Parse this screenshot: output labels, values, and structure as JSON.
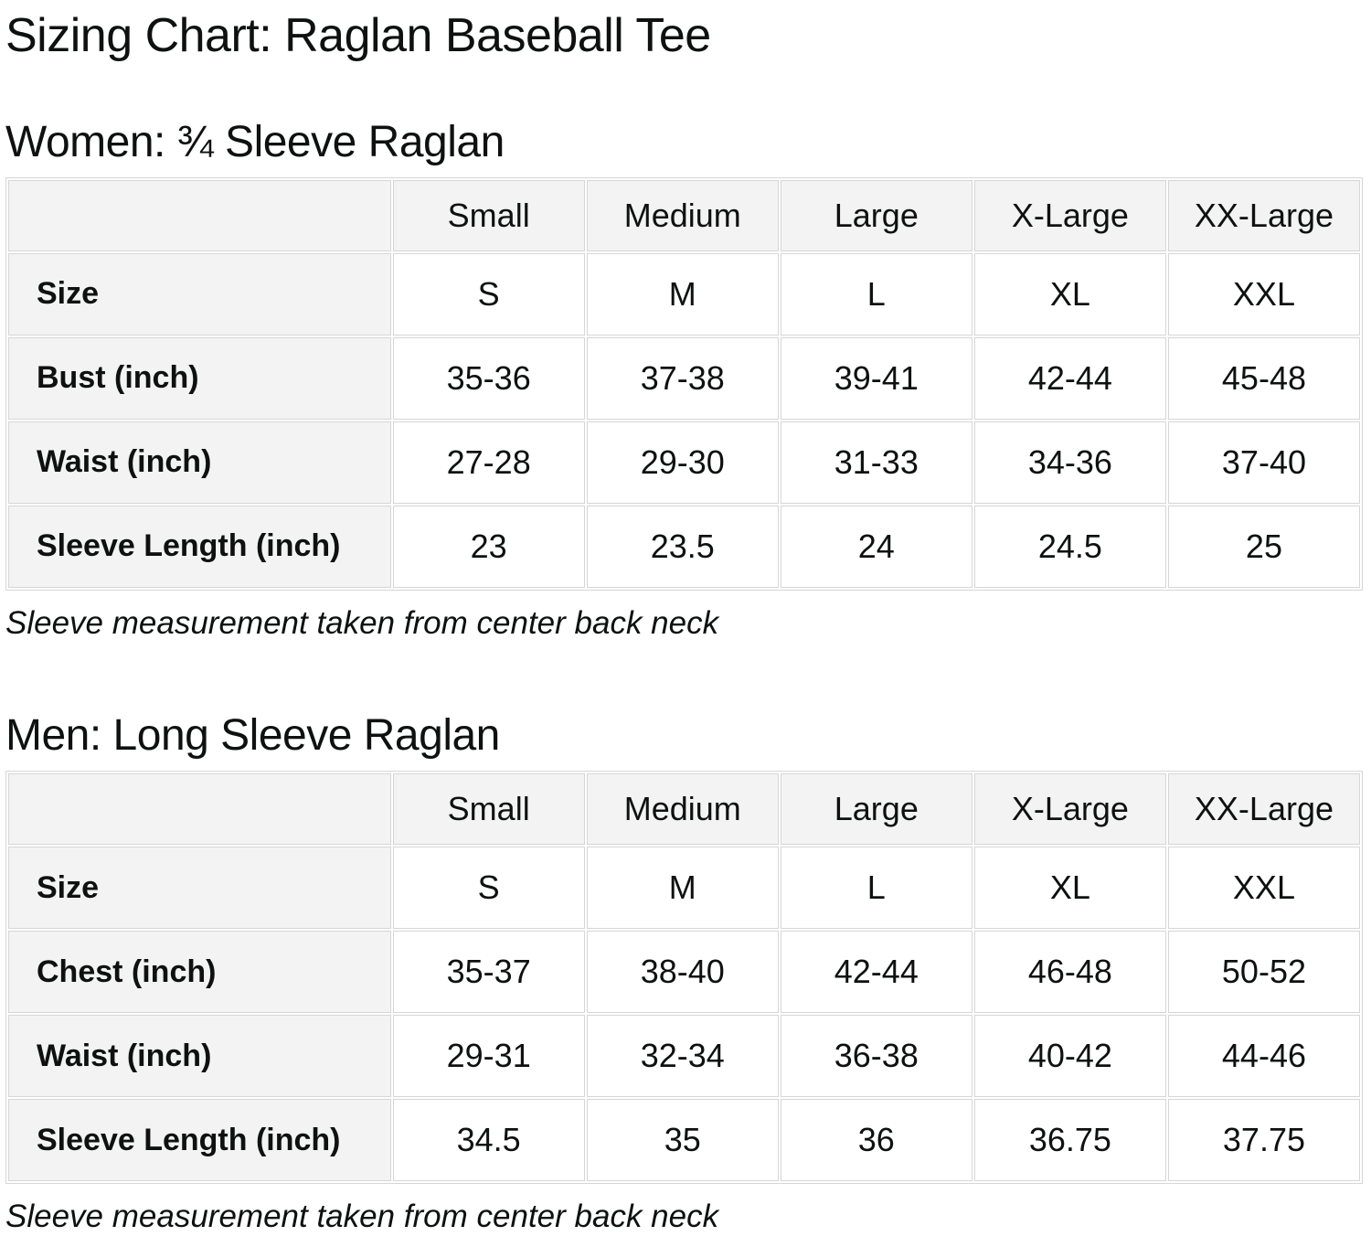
{
  "page": {
    "title": "Sizing Chart: Raglan Baseball Tee"
  },
  "colors": {
    "text": "#0f1111",
    "background": "#ffffff",
    "table_header_bg": "#f3f3f3",
    "table_border": "#d6d6d6"
  },
  "sections": [
    {
      "heading": "Women: ¾ Sleeve Raglan",
      "note": "Sleeve measurement taken from center back neck",
      "table": {
        "columns": [
          "Small",
          "Medium",
          "Large",
          "X-Large",
          "XX-Large"
        ],
        "rows": [
          {
            "label": "Size",
            "values": [
              "S",
              "M",
              "L",
              "XL",
              "XXL"
            ]
          },
          {
            "label": "Bust (inch)",
            "values": [
              "35-36",
              "37-38",
              "39-41",
              "42-44",
              "45-48"
            ]
          },
          {
            "label": "Waist (inch)",
            "values": [
              "27-28",
              "29-30",
              "31-33",
              "34-36",
              "37-40"
            ]
          },
          {
            "label": "Sleeve Length (inch)",
            "values": [
              "23",
              "23.5",
              "24",
              "24.5",
              "25"
            ]
          }
        ]
      }
    },
    {
      "heading": "Men: Long Sleeve Raglan",
      "note": "Sleeve measurement taken from center back neck",
      "table": {
        "columns": [
          "Small",
          "Medium",
          "Large",
          "X-Large",
          "XX-Large"
        ],
        "rows": [
          {
            "label": "Size",
            "values": [
              "S",
              "M",
              "L",
              "XL",
              "XXL"
            ]
          },
          {
            "label": "Chest (inch)",
            "values": [
              "35-37",
              "38-40",
              "42-44",
              "46-48",
              "50-52"
            ]
          },
          {
            "label": "Waist (inch)",
            "values": [
              "29-31",
              "32-34",
              "36-38",
              "40-42",
              "44-46"
            ]
          },
          {
            "label": "Sleeve Length (inch)",
            "values": [
              "34.5",
              "35",
              "36",
              "36.75",
              "37.75"
            ]
          }
        ]
      }
    }
  ]
}
